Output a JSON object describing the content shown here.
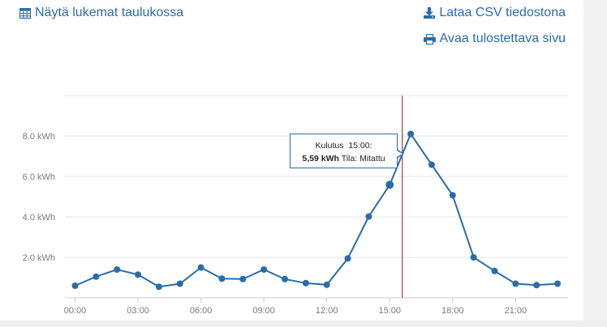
{
  "links": {
    "table_label": "Näytä lukemat taulukossa",
    "csv_label": "Lataa CSV tiedostona",
    "print_label": "Avaa tulostettava sivu"
  },
  "icons": {
    "table": "table-icon",
    "csv": "download-icon",
    "print": "print-icon"
  },
  "tooltip": {
    "series": "Kulutus",
    "time": "15:00:",
    "value": "5,59 kWh",
    "status_label": "Tila:",
    "status": "Mitattu"
  },
  "colors": {
    "link": "#2b6ca8",
    "line": "#2b6ca8",
    "crosshair": "#8b1a1a",
    "grid": "#e6e6e6"
  },
  "chart_data": {
    "type": "line",
    "x": [
      "00:00",
      "01:00",
      "02:00",
      "03:00",
      "04:00",
      "05:00",
      "06:00",
      "07:00",
      "08:00",
      "09:00",
      "10:00",
      "11:00",
      "12:00",
      "13:00",
      "14:00",
      "15:00",
      "16:00",
      "17:00",
      "18:00",
      "19:00",
      "20:00",
      "21:00",
      "22:00",
      "23:00"
    ],
    "series": [
      {
        "values": [
          0.6,
          1.05,
          1.4,
          1.15,
          0.55,
          0.7,
          1.5,
          0.95,
          0.93,
          1.4,
          0.93,
          0.73,
          0.65,
          1.95,
          4.02,
          5.59,
          8.1,
          6.58,
          5.07,
          2.0,
          1.33,
          0.7,
          0.63,
          0.7
        ]
      }
    ],
    "x_tick_labels": [
      "00:00",
      "03:00",
      "06:00",
      "09:00",
      "12:00",
      "15:00",
      "18:00",
      "21:00"
    ],
    "y_tick_labels": [
      "2.0 kWh",
      "4.0 kWh",
      "6.0 kWh",
      "8.0 kWh"
    ],
    "y_ticks": [
      2,
      4,
      6,
      8
    ],
    "ylim": [
      0,
      10
    ],
    "highlight_index": 15,
    "crosshair_x_hours": 15.6,
    "grid": true,
    "title": "",
    "xlabel": "",
    "ylabel": ""
  }
}
